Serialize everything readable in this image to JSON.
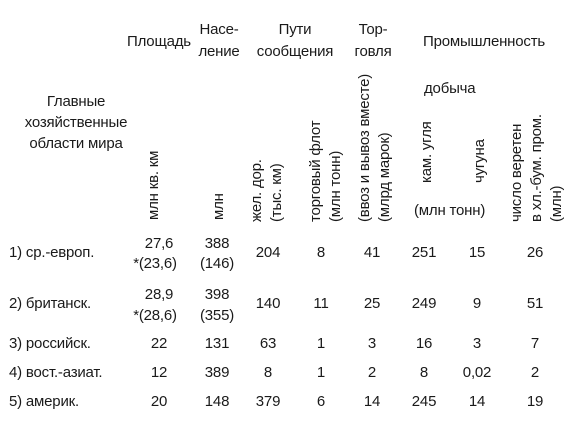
{
  "header": {
    "area": "Площадь",
    "population": [
      "Насе-",
      "ление"
    ],
    "communications": [
      "Пути",
      "сообщения"
    ],
    "trade": [
      "Тор-",
      "говля"
    ],
    "industry": "Промышленность",
    "mining": "добыча",
    "regions": [
      "Главные",
      "хозяйственные",
      "области мира"
    ]
  },
  "vertical": {
    "area_unit": "млн кв. км",
    "pop_unit": "млн",
    "rail": [
      "жел. дор.",
      "(тыс. км)"
    ],
    "fleet": [
      "торговый флот",
      "(млн тонн)"
    ],
    "trade": [
      "(ввоз и вывоз вместе)",
      "(млрд марок)"
    ],
    "coal": "кам. угля",
    "iron": "чугуна",
    "spindles": [
      "число веретен",
      "в хл.-бум. пром.",
      "(млн)"
    ]
  },
  "mining_unit": "(млн тонн)",
  "rows": [
    {
      "region": "1) ср.-европ.",
      "area": "27,6",
      "area2": "*(23,6)",
      "pop": "388",
      "pop2": "(146)",
      "rail": "204",
      "fleet": "8",
      "trade": "41",
      "coal": "251",
      "iron": "15",
      "spindles": "26"
    },
    {
      "region": "2) британск.",
      "area": "28,9",
      "area2": "*(28,6)",
      "pop": "398",
      "pop2": "(355)",
      "rail": "140",
      "fleet": "11",
      "trade": "25",
      "coal": "249",
      "iron": "9",
      "spindles": "51"
    },
    {
      "region": "3) российск.",
      "area": "22",
      "pop": "131",
      "rail": "63",
      "fleet": "1",
      "trade": "3",
      "coal": "16",
      "iron": "3",
      "spindles": "7"
    },
    {
      "region": "4) вост.-азиат.",
      "area": "12",
      "pop": "389",
      "rail": "8",
      "fleet": "1",
      "trade": "2",
      "coal": "8",
      "iron": "0,02",
      "spindles": "2"
    },
    {
      "region": "5) америк.",
      "area": "20",
      "pop": "148",
      "rail": "379",
      "fleet": "6",
      "trade": "14",
      "coal": "245",
      "iron": "14",
      "spindles": "19"
    }
  ]
}
